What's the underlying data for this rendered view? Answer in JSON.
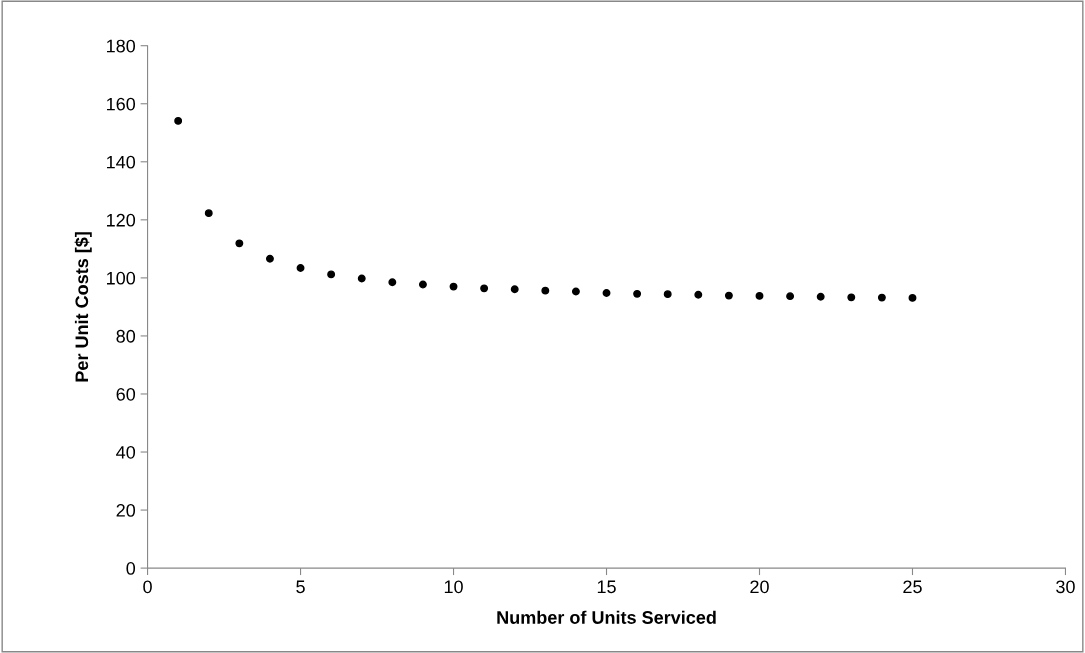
{
  "chart_data": {
    "type": "scatter",
    "xlabel": "Number of Units Serviced",
    "ylabel": "Per Unit Costs [$]",
    "x": [
      1,
      2,
      3,
      4,
      5,
      6,
      7,
      8,
      9,
      10,
      11,
      12,
      13,
      14,
      15,
      16,
      17,
      18,
      19,
      20,
      21,
      22,
      23,
      24,
      25
    ],
    "series": [
      {
        "color": "#000000",
        "values": [
          154.1,
          122.3,
          111.9,
          106.6,
          103.4,
          101.2,
          99.8,
          98.5,
          97.7,
          97.0,
          96.4,
          96.1,
          95.6,
          95.3,
          94.8,
          94.5,
          94.4,
          94.2,
          93.9,
          93.8,
          93.7,
          93.5,
          93.3,
          93.2,
          93.1
        ]
      }
    ],
    "xlim": [
      0,
      30
    ],
    "xticks": [
      0,
      5,
      10,
      15,
      20,
      25,
      30
    ],
    "ylim": [
      0,
      180
    ],
    "yticks": [
      0,
      20,
      40,
      60,
      80,
      100,
      120,
      140,
      160,
      180
    ],
    "grid": false,
    "legend": false,
    "marker": "circle"
  }
}
